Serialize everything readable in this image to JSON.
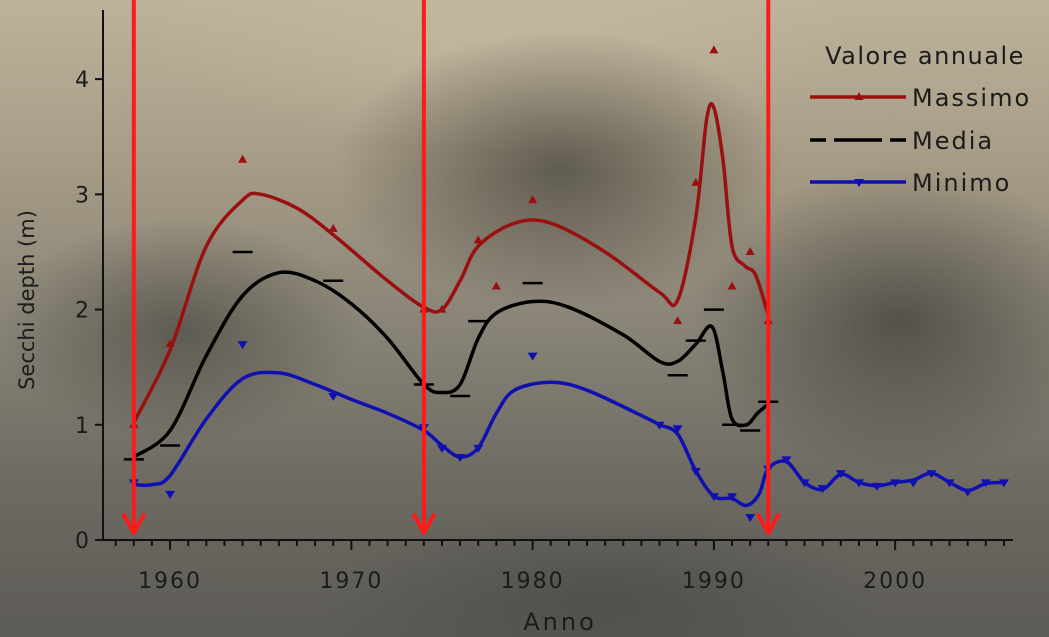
{
  "chart_data": {
    "type": "line",
    "xlabel": "Anno",
    "ylabel": "Secchi depth (m)",
    "xlim": [
      1956.3,
      2006.5
    ],
    "ylim": [
      0,
      4.6
    ],
    "xticks": [
      1960,
      1970,
      1980,
      1990,
      2000
    ],
    "yticks": [
      0,
      1,
      2,
      3,
      4
    ],
    "legend": {
      "title": "Valore annuale",
      "placement": "top-right"
    },
    "colors": {
      "massimo": "#9a1010",
      "media": "#000000",
      "minimo": "#1010b0",
      "arrow": "#ff1a1a"
    },
    "series": [
      {
        "name": "Massimo",
        "marker": "triangle-up",
        "points": [
          [
            1958,
            1.0
          ],
          [
            1960,
            1.7
          ],
          [
            1964,
            3.3
          ],
          [
            1969,
            2.7
          ],
          [
            1974,
            2.0
          ],
          [
            1975,
            2.0
          ],
          [
            1977,
            2.6
          ],
          [
            1978,
            2.2
          ],
          [
            1980,
            2.95
          ],
          [
            1988,
            1.9
          ],
          [
            1989,
            3.1
          ],
          [
            1990,
            4.25
          ],
          [
            1991,
            2.2
          ],
          [
            1992,
            2.5
          ],
          [
            1993,
            1.9
          ]
        ],
        "curve": [
          [
            1958,
            1.02
          ],
          [
            1960,
            1.65
          ],
          [
            1962,
            2.55
          ],
          [
            1964,
            2.95
          ],
          [
            1965,
            3.0
          ],
          [
            1967,
            2.88
          ],
          [
            1969,
            2.65
          ],
          [
            1972,
            2.25
          ],
          [
            1974,
            2.02
          ],
          [
            1975,
            2.0
          ],
          [
            1976,
            2.25
          ],
          [
            1977,
            2.55
          ],
          [
            1979,
            2.75
          ],
          [
            1981,
            2.75
          ],
          [
            1984,
            2.5
          ],
          [
            1987,
            2.15
          ],
          [
            1988,
            2.08
          ],
          [
            1989,
            2.8
          ],
          [
            1989.6,
            3.65
          ],
          [
            1990,
            3.75
          ],
          [
            1990.5,
            3.3
          ],
          [
            1991,
            2.55
          ],
          [
            1991.7,
            2.38
          ],
          [
            1992.3,
            2.3
          ],
          [
            1993,
            1.95
          ]
        ]
      },
      {
        "name": "Media",
        "marker": "dash",
        "points": [
          [
            1958,
            0.7
          ],
          [
            1960,
            0.82
          ],
          [
            1964,
            2.5
          ],
          [
            1969,
            2.25
          ],
          [
            1974,
            1.35
          ],
          [
            1976,
            1.25
          ],
          [
            1977,
            1.9
          ],
          [
            1980,
            2.23
          ],
          [
            1988,
            1.43
          ],
          [
            1989,
            1.73
          ],
          [
            1990,
            2.0
          ],
          [
            1991,
            1.0
          ],
          [
            1992,
            0.95
          ],
          [
            1993,
            1.2
          ]
        ],
        "curve": [
          [
            1958,
            0.72
          ],
          [
            1960,
            0.95
          ],
          [
            1962,
            1.6
          ],
          [
            1964,
            2.12
          ],
          [
            1966,
            2.32
          ],
          [
            1968,
            2.25
          ],
          [
            1970,
            2.05
          ],
          [
            1972,
            1.75
          ],
          [
            1974,
            1.35
          ],
          [
            1975,
            1.28
          ],
          [
            1976,
            1.35
          ],
          [
            1977,
            1.75
          ],
          [
            1978,
            1.97
          ],
          [
            1980,
            2.07
          ],
          [
            1982,
            2.02
          ],
          [
            1985,
            1.78
          ],
          [
            1987,
            1.55
          ],
          [
            1988,
            1.55
          ],
          [
            1989,
            1.7
          ],
          [
            1989.9,
            1.85
          ],
          [
            1990.5,
            1.45
          ],
          [
            1991,
            1.05
          ],
          [
            1991.8,
            1.0
          ],
          [
            1992.4,
            1.1
          ],
          [
            1993,
            1.18
          ]
        ]
      },
      {
        "name": "Minimo",
        "marker": "triangle-down",
        "points": [
          [
            1958,
            0.5
          ],
          [
            1960,
            0.4
          ],
          [
            1964,
            1.7
          ],
          [
            1969,
            1.25
          ],
          [
            1974,
            0.98
          ],
          [
            1975,
            0.8
          ],
          [
            1976,
            0.72
          ],
          [
            1977,
            0.8
          ],
          [
            1980,
            1.6
          ],
          [
            1987,
            1.0
          ],
          [
            1988,
            0.97
          ],
          [
            1989,
            0.6
          ],
          [
            1990,
            0.38
          ],
          [
            1991,
            0.38
          ],
          [
            1992,
            0.2
          ],
          [
            1993,
            0.62
          ],
          [
            1994,
            0.7
          ],
          [
            1995,
            0.5
          ],
          [
            1996,
            0.45
          ],
          [
            1997,
            0.58
          ],
          [
            1998,
            0.5
          ],
          [
            1999,
            0.47
          ],
          [
            2000,
            0.5
          ],
          [
            2001,
            0.5
          ],
          [
            2002,
            0.58
          ],
          [
            2003,
            0.5
          ],
          [
            2004,
            0.42
          ],
          [
            2005,
            0.5
          ],
          [
            2006,
            0.5
          ]
        ],
        "curve": [
          [
            1958,
            0.48
          ],
          [
            1959,
            0.48
          ],
          [
            1960,
            0.56
          ],
          [
            1962,
            1.05
          ],
          [
            1964,
            1.4
          ],
          [
            1966,
            1.45
          ],
          [
            1968,
            1.35
          ],
          [
            1970,
            1.22
          ],
          [
            1972,
            1.1
          ],
          [
            1974,
            0.95
          ],
          [
            1975,
            0.82
          ],
          [
            1976,
            0.72
          ],
          [
            1977,
            0.8
          ],
          [
            1978,
            1.1
          ],
          [
            1979,
            1.3
          ],
          [
            1981,
            1.37
          ],
          [
            1983,
            1.3
          ],
          [
            1986,
            1.08
          ],
          [
            1987,
            1.0
          ],
          [
            1988,
            0.92
          ],
          [
            1989,
            0.6
          ],
          [
            1990,
            0.38
          ],
          [
            1991,
            0.36
          ],
          [
            1991.8,
            0.3
          ],
          [
            1992.5,
            0.4
          ],
          [
            1993,
            0.62
          ],
          [
            1994,
            0.68
          ],
          [
            1995,
            0.5
          ],
          [
            1996,
            0.44
          ],
          [
            1997,
            0.57
          ],
          [
            1998,
            0.5
          ],
          [
            1999,
            0.47
          ],
          [
            2000,
            0.5
          ],
          [
            2001,
            0.52
          ],
          [
            2002,
            0.58
          ],
          [
            2003,
            0.5
          ],
          [
            2004,
            0.43
          ],
          [
            2005,
            0.49
          ],
          [
            2006,
            0.5
          ]
        ]
      }
    ],
    "arrows": [
      1958,
      1974,
      1993
    ],
    "grid": false
  }
}
